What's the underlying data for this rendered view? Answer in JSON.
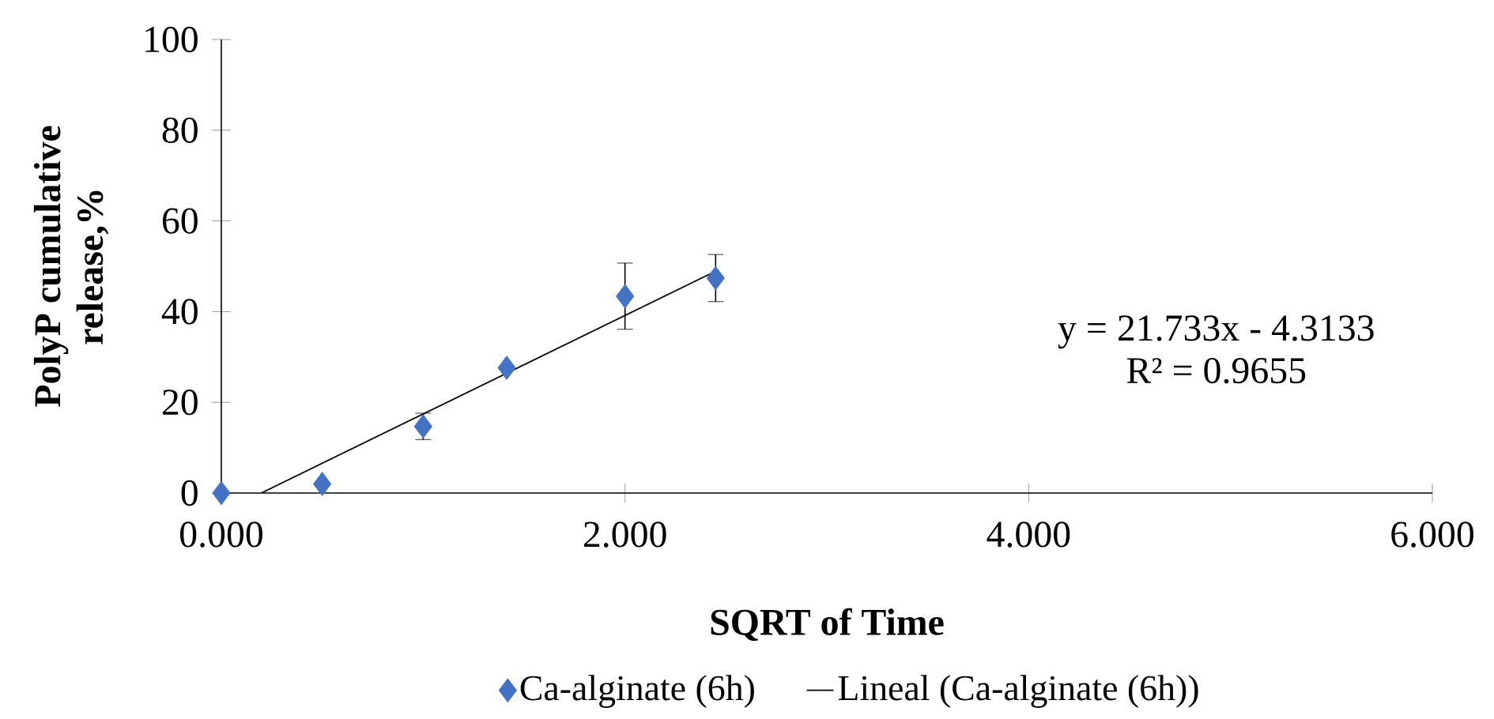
{
  "chart_data": {
    "type": "scatter",
    "xlabel": "SQRT of Time",
    "ylabel": "PolyP cumulative release,%",
    "xlim": [
      0,
      6
    ],
    "xticks": [
      {
        "value": 0,
        "label": "0.000"
      },
      {
        "value": 2,
        "label": "2.000"
      },
      {
        "value": 4,
        "label": "4.000"
      },
      {
        "value": 6,
        "label": "6.000"
      }
    ],
    "ylim": [
      0,
      100
    ],
    "yticks": [
      0,
      20,
      40,
      60,
      80,
      100
    ],
    "series": [
      {
        "name": "Ca-alginate (6h)",
        "type": "scatter",
        "color": "#4472c4",
        "marker": "diamond",
        "x": [
          0,
          0.5,
          1,
          1.414,
          2,
          2.449
        ],
        "values": [
          0,
          2.0,
          14.7,
          27.6,
          43.4,
          47.4
        ],
        "errors": [
          null,
          null,
          2.9,
          null,
          7.3,
          5.2
        ]
      },
      {
        "name": "Lineal (Ca-alginate (6h))",
        "type": "line",
        "color": "#000000",
        "marker": "none",
        "x": [
          0.198,
          2.449
        ],
        "values": [
          0,
          48.9
        ]
      }
    ],
    "annotations": [
      "y = 21.733x - 4.3133",
      "R² = 0.9655"
    ],
    "legend": "bottom",
    "grid": false
  }
}
